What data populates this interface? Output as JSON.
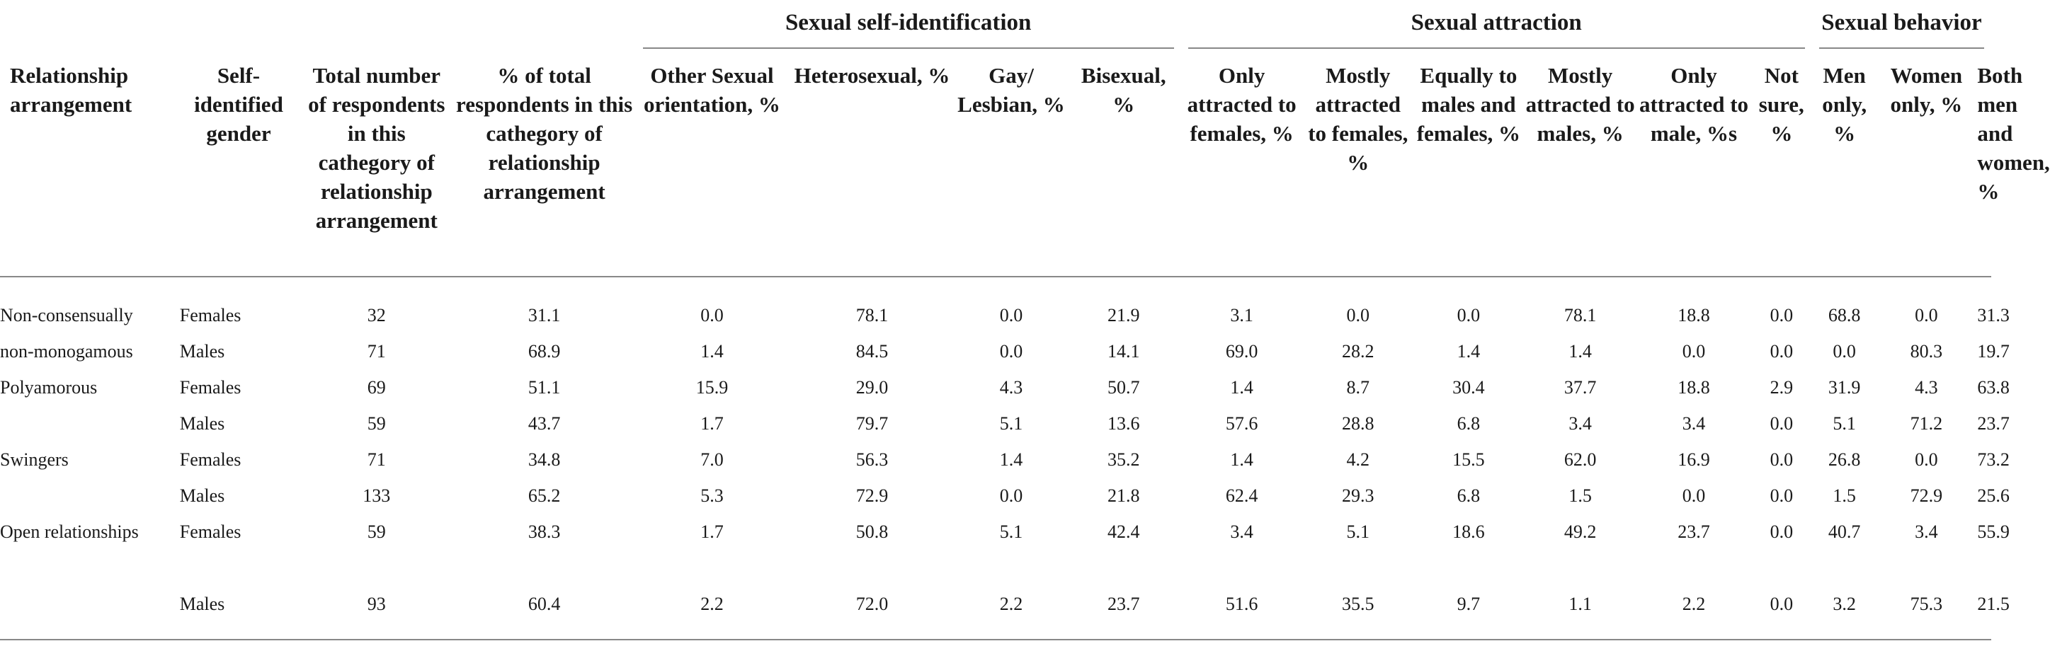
{
  "table": {
    "groups": {
      "self_identification": "Sexual self-identification",
      "attraction": "Sexual attraction",
      "behavior": "Sexual behavior"
    },
    "columns": [
      "Relationship arrangement",
      "Self-identified gender",
      "Total number of respondents in this cathegory of relationship arrangement",
      "% of total respondents in this cathegory of relationship arrangement",
      "Other Sexual orientation, %",
      "Heterosexual, %",
      "Gay/ Lesbian, %",
      "Bisexual, %",
      "Only attracted to females, %",
      "Mostly attracted to females, %",
      "Equally to males and females, %",
      "Mostly attracted to males, %",
      "Only attracted to male, %s",
      "Not sure, %",
      "Men only, %",
      "Women only, %",
      "Both men and women, %"
    ],
    "rows": [
      {
        "arrangement": "Non-consensually",
        "gender": "Females",
        "values": [
          "32",
          "31.1",
          "0.0",
          "78.1",
          "0.0",
          "21.9",
          "3.1",
          "0.0",
          "0.0",
          "78.1",
          "18.8",
          "0.0",
          "68.8",
          "0.0",
          "31.3"
        ]
      },
      {
        "arrangement": "non-monogamous",
        "gender": "Males",
        "values": [
          "71",
          "68.9",
          "1.4",
          "84.5",
          "0.0",
          "14.1",
          "69.0",
          "28.2",
          "1.4",
          "1.4",
          "0.0",
          "0.0",
          "0.0",
          "80.3",
          "19.7"
        ]
      },
      {
        "arrangement": "Polyamorous",
        "gender": "Females",
        "values": [
          "69",
          "51.1",
          "15.9",
          "29.0",
          "4.3",
          "50.7",
          "1.4",
          "8.7",
          "30.4",
          "37.7",
          "18.8",
          "2.9",
          "31.9",
          "4.3",
          "63.8"
        ]
      },
      {
        "arrangement": "",
        "gender": "Males",
        "values": [
          "59",
          "43.7",
          "1.7",
          "79.7",
          "5.1",
          "13.6",
          "57.6",
          "28.8",
          "6.8",
          "3.4",
          "3.4",
          "0.0",
          "5.1",
          "71.2",
          "23.7"
        ]
      },
      {
        "arrangement": "Swingers",
        "gender": "Females",
        "values": [
          "71",
          "34.8",
          "7.0",
          "56.3",
          "1.4",
          "35.2",
          "1.4",
          "4.2",
          "15.5",
          "62.0",
          "16.9",
          "0.0",
          "26.8",
          "0.0",
          "73.2"
        ]
      },
      {
        "arrangement": "",
        "gender": "Males",
        "values": [
          "133",
          "65.2",
          "5.3",
          "72.9",
          "0.0",
          "21.8",
          "62.4",
          "29.3",
          "6.8",
          "1.5",
          "0.0",
          "0.0",
          "1.5",
          "72.9",
          "25.6"
        ]
      },
      {
        "arrangement": "Open relationships",
        "gender": "Females",
        "values": [
          "59",
          "38.3",
          "1.7",
          "50.8",
          "5.1",
          "42.4",
          "3.4",
          "5.1",
          "18.6",
          "49.2",
          "23.7",
          "0.0",
          "40.7",
          "3.4",
          "55.9"
        ]
      },
      {
        "arrangement": "",
        "gender": "Males",
        "values": [
          "93",
          "60.4",
          "2.2",
          "72.0",
          "2.2",
          "23.7",
          "51.6",
          "35.5",
          "9.7",
          "1.1",
          "2.2",
          "0.0",
          "3.2",
          "75.3",
          "21.5"
        ]
      }
    ]
  }
}
